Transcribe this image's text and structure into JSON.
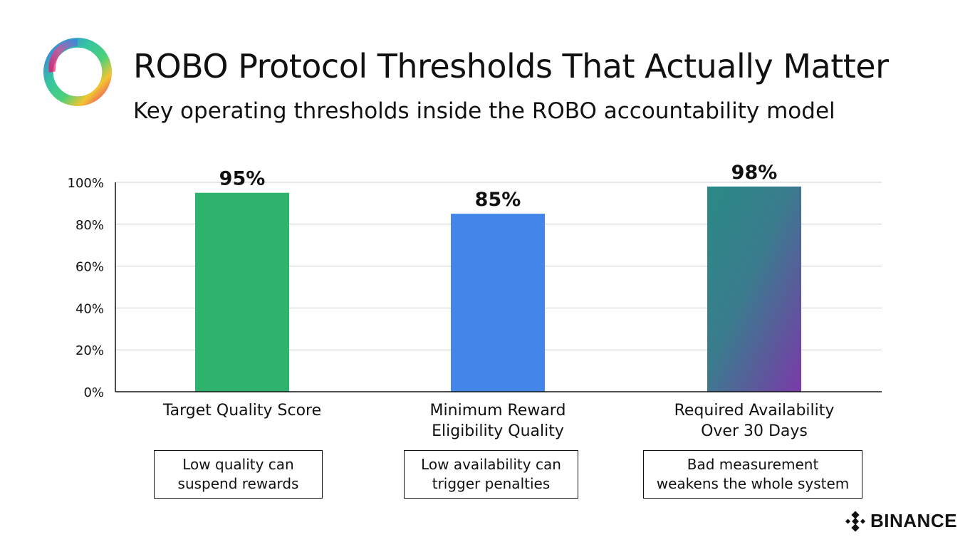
{
  "header": {
    "title": "ROBO Protocol Thresholds That Actually Matter",
    "subtitle": "Key operating thresholds inside the ROBO accountability model"
  },
  "chart_data": {
    "type": "bar",
    "categories": [
      "Target Quality Score",
      "Minimum Reward Eligibility Quality",
      "Required Availability Over 30 Days"
    ],
    "category_lines": [
      [
        "Target Quality Score"
      ],
      [
        "Minimum Reward",
        "Eligibility Quality"
      ],
      [
        "Required Availability",
        "Over 30 Days"
      ]
    ],
    "values": [
      95,
      85,
      98
    ],
    "data_labels": [
      "95%",
      "85%",
      "98%"
    ],
    "colors": [
      "#2db36c",
      "#4385e8",
      "gradient"
    ],
    "yticks": [
      "0%",
      "20%",
      "40%",
      "60%",
      "80%",
      "100%"
    ],
    "ylim": [
      0,
      100
    ],
    "grid": true
  },
  "notes": [
    "Low quality can|suspend rewards",
    "Low availability can|trigger penalties",
    "Bad measurement|weakens the whole system"
  ],
  "brand": {
    "name": "BINANCE"
  }
}
